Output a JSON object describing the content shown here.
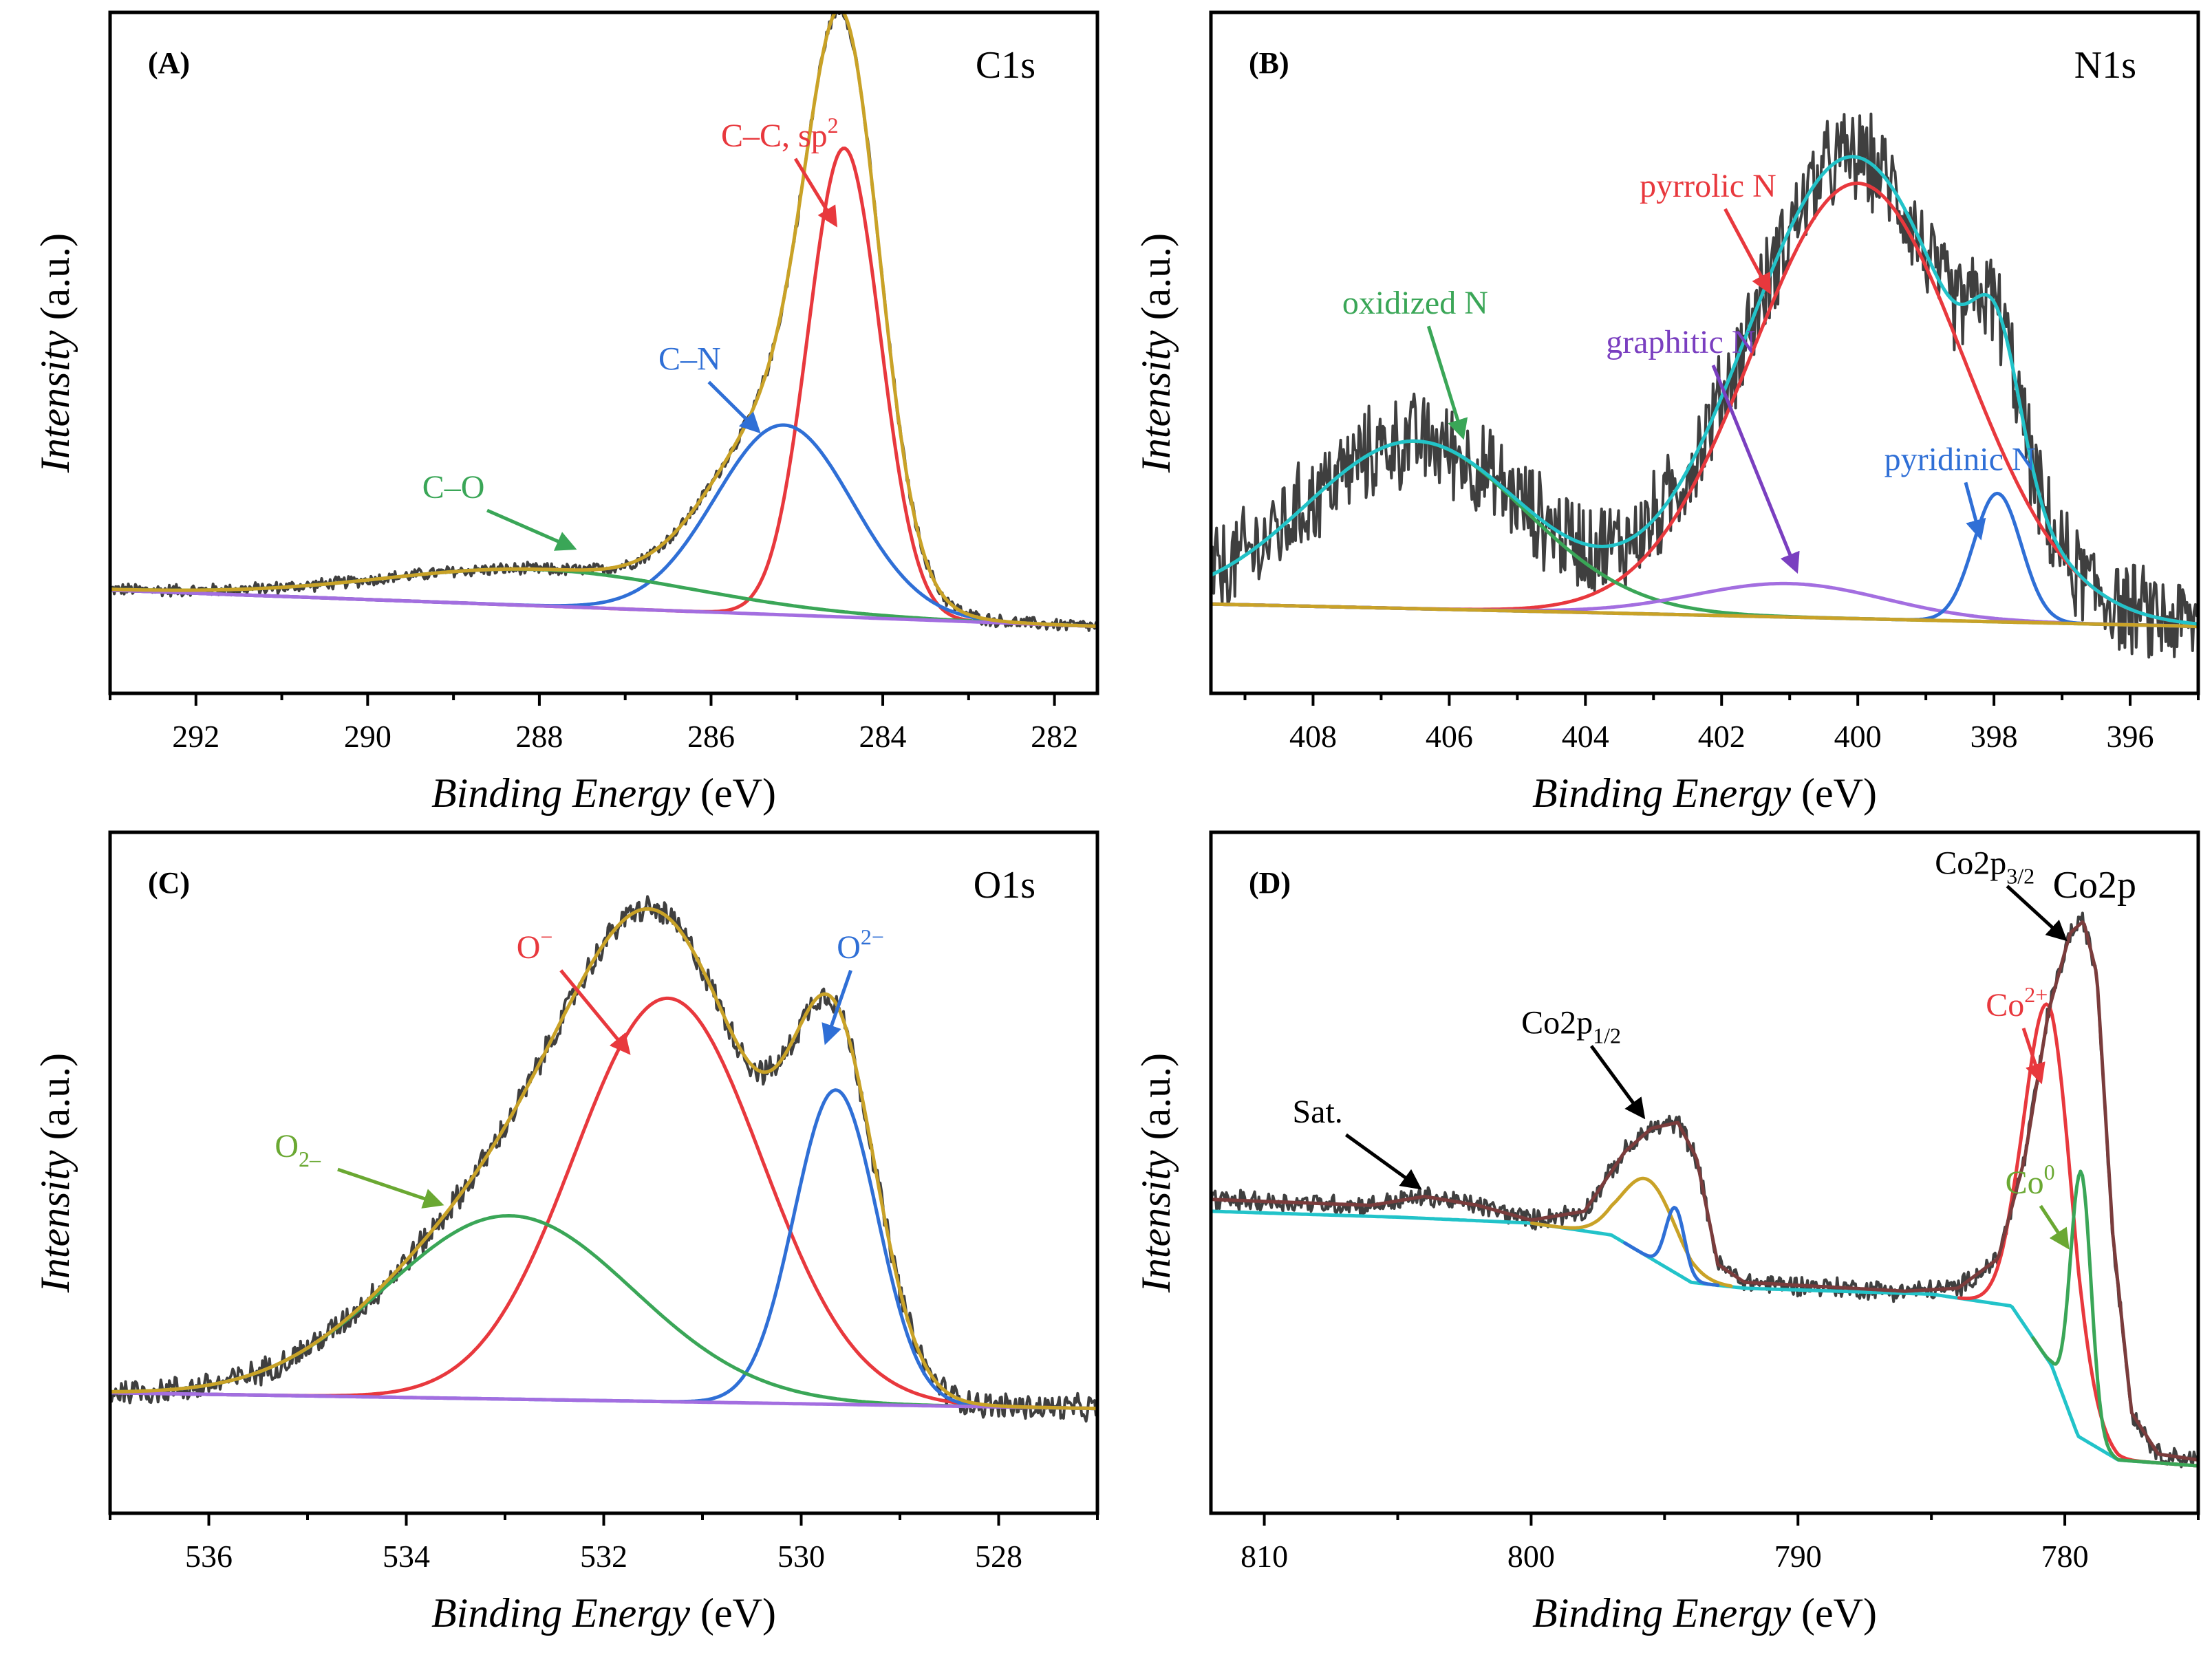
{
  "chart_data": [
    {
      "id": "A",
      "type": "line",
      "panel_label": "(A)",
      "title": "C1s",
      "xlabel_italic": "Binding Energy",
      "xlabel_unit": "(eV)",
      "ylabel_italic": "Intensity",
      "ylabel_unit": "(a.u.)",
      "xlim": [
        293,
        281.5
      ],
      "ylim": [
        -0.12,
        1.1
      ],
      "xticks": [
        292,
        290,
        288,
        286,
        284,
        282
      ],
      "xtick_labels": [
        "292",
        "290",
        "288",
        "286",
        "284",
        "282"
      ],
      "baseline": {
        "start": 0.065,
        "end": 0.0
      },
      "raw_noise": 0.008,
      "series": [
        {
          "name": "C–C, sp2",
          "color": "#e8383d",
          "kind": "gauss",
          "center": 284.45,
          "amp": 0.84,
          "sigma": 0.42
        },
        {
          "name": "C–N",
          "color": "#2f6fd6",
          "kind": "gauss",
          "center": 285.15,
          "amp": 0.34,
          "sigma": 0.8
        },
        {
          "name": "C–O",
          "color": "#3aa657",
          "kind": "gauss",
          "center": 288.0,
          "amp": 0.065,
          "sigma": 1.8
        },
        {
          "name": "Background",
          "color": "#a36ee0",
          "kind": "baseline"
        },
        {
          "name": "Envelope",
          "color": "#c9a227",
          "kind": "sum"
        }
      ],
      "annotations": [
        {
          "text": "C–C, sp",
          "sup": "2",
          "color": "#e8383d",
          "x": 285.2,
          "y": 0.86,
          "ax": 284.55,
          "ay": 0.72
        },
        {
          "text": "C–N",
          "color": "#2f6fd6",
          "x": 286.25,
          "y": 0.46,
          "ax": 285.45,
          "ay": 0.35
        },
        {
          "text": "C–O",
          "color": "#3aa657",
          "x": 289.0,
          "y": 0.23,
          "ax": 287.6,
          "ay": 0.14
        }
      ]
    },
    {
      "id": "B",
      "type": "line",
      "panel_label": "(B)",
      "title": "N1s",
      "xlabel_italic": "Binding Energy",
      "xlabel_unit": "(eV)",
      "ylabel_italic": "Intensity",
      "ylabel_unit": "(a.u.)",
      "xlim": [
        409.5,
        395
      ],
      "ylim": [
        -0.12,
        1.1
      ],
      "xticks": [
        408,
        406,
        404,
        402,
        400,
        398,
        396
      ],
      "xtick_labels": [
        "408",
        "406",
        "404",
        "402",
        "400",
        "398",
        "396"
      ],
      "baseline": {
        "start": 0.04,
        "end": 0.0
      },
      "raw_noise": 0.06,
      "series": [
        {
          "name": "pyrrolic N",
          "color": "#e8383d",
          "kind": "gauss",
          "center": 400.0,
          "amp": 0.78,
          "sigma": 1.55
        },
        {
          "name": "oxidized N",
          "color": "#3aa657",
          "kind": "gauss",
          "center": 406.5,
          "amp": 0.3,
          "sigma": 1.6
        },
        {
          "name": "graphitic N",
          "color": "#a36ee0",
          "kind": "gauss",
          "center": 401.0,
          "amp": 0.06,
          "sigma": 1.4
        },
        {
          "name": "pyridinic N",
          "color": "#2f6fd6",
          "kind": "gauss",
          "center": 397.95,
          "amp": 0.23,
          "sigma": 0.35
        },
        {
          "name": "Background",
          "color": "#c9a227",
          "kind": "baseline"
        },
        {
          "name": "Envelope",
          "color": "#22c3c9",
          "kind": "sum"
        }
      ],
      "annotations": [
        {
          "text": "pyrrolic N",
          "color": "#e8383d",
          "x": 402.2,
          "y": 0.77,
          "ax": 401.3,
          "ay": 0.6
        },
        {
          "text": "oxidized N",
          "color": "#3aa657",
          "x": 406.5,
          "y": 0.56,
          "ax": 405.8,
          "ay": 0.34
        },
        {
          "text": "graphitic N",
          "color": "#7a3fc0",
          "x": 402.6,
          "y": 0.49,
          "ax": 400.9,
          "ay": 0.1
        },
        {
          "text": "pyridinic N",
          "color": "#2f6fd6",
          "x": 398.5,
          "y": 0.28,
          "ax": 398.2,
          "ay": 0.16
        }
      ]
    },
    {
      "id": "C",
      "type": "line",
      "panel_label": "(C)",
      "title": "O1s",
      "xlabel_italic": "Binding Energy",
      "xlabel_unit": "(eV)",
      "ylabel_italic": "Intensity",
      "ylabel_unit": "(a.u.)",
      "xlim": [
        537,
        527
      ],
      "ylim": [
        -0.2,
        1.1
      ],
      "xticks": [
        536,
        534,
        532,
        530,
        528
      ],
      "xtick_labels": [
        "536",
        "534",
        "532",
        "530",
        "528"
      ],
      "baseline": {
        "start": 0.03,
        "end": 0.0
      },
      "raw_noise": 0.018,
      "series": [
        {
          "name": "O⁻",
          "color": "#e8383d",
          "kind": "gauss",
          "center": 531.35,
          "amp": 0.77,
          "sigma": 0.95
        },
        {
          "name": "O2−",
          "color": "#2f6fd6",
          "kind": "gauss",
          "center": 529.65,
          "amp": 0.6,
          "sigma": 0.42
        },
        {
          "name": "O2–",
          "color": "#3aa657",
          "kind": "gauss",
          "center": 532.95,
          "amp": 0.35,
          "sigma": 1.25
        },
        {
          "name": "Background",
          "color": "#a36ee0",
          "kind": "baseline"
        },
        {
          "name": "Envelope",
          "color": "#c9a227",
          "kind": "sum"
        }
      ],
      "annotations": [
        {
          "text": "O",
          "sup": "−",
          "color": "#e8383d",
          "x": 532.7,
          "y": 0.86,
          "ax": 531.75,
          "ay": 0.68
        },
        {
          "text": "O",
          "sup": "2−",
          "color": "#2f6fd6",
          "x": 529.4,
          "y": 0.86,
          "ax": 529.75,
          "ay": 0.7
        },
        {
          "text": "O",
          "sub": "2–",
          "color": "#6aa832",
          "x": 535.1,
          "y": 0.48,
          "ax": 533.65,
          "ay": 0.39
        }
      ]
    },
    {
      "id": "D",
      "type": "line",
      "panel_label": "(D)",
      "title": "Co2p",
      "xlabel_italic": "Binding Energy",
      "xlabel_unit": "(eV)",
      "ylabel_italic": "Intensity",
      "ylabel_unit": "(a.u.)",
      "xlim": [
        812,
        775
      ],
      "ylim": [
        -0.05,
        1.1
      ],
      "xticks": [
        810,
        800,
        790,
        780
      ],
      "xtick_labels": [
        "810",
        "800",
        "790",
        "780"
      ],
      "raw_noise": 0.012,
      "background_points": [
        [
          812,
          0.46
        ],
        [
          805,
          0.45
        ],
        [
          800,
          0.44
        ],
        [
          797,
          0.42
        ],
        [
          794,
          0.34
        ],
        [
          792,
          0.33
        ],
        [
          785,
          0.32
        ],
        [
          782,
          0.3
        ],
        [
          780.5,
          0.2
        ],
        [
          779.5,
          0.08
        ],
        [
          778,
          0.04
        ],
        [
          775,
          0.03
        ]
      ],
      "series": [
        {
          "name": "Background",
          "color": "#22c3c9",
          "kind": "background"
        },
        {
          "name": "Co2p1/2",
          "color": "#c9a227",
          "kind": "gauss_bg",
          "center": 795.6,
          "amp": 0.13,
          "sigma": 1.0,
          "range": [
            800,
            792.5
          ]
        },
        {
          "name": "Co2p1/2 Co0",
          "color": "#2f6fd6",
          "kind": "gauss_bg",
          "center": 794.6,
          "amp": 0.11,
          "sigma": 0.35,
          "range": [
            796.5,
            793
          ]
        },
        {
          "name": "Co2+",
          "color": "#e8383d",
          "kind": "gauss_bg",
          "center": 780.6,
          "amp": 0.6,
          "sigma": 0.9,
          "range": [
            784,
            775
          ]
        },
        {
          "name": "Co0",
          "color": "#3aa657",
          "kind": "gauss_bg",
          "center": 779.4,
          "amp": 0.45,
          "sigma": 0.38,
          "range": [
            781.2,
            775
          ]
        },
        {
          "name": "Envelope",
          "color": "#7a3c3c",
          "kind": "envelope_points",
          "points": [
            [
              812,
              0.48
            ],
            [
              806,
              0.47
            ],
            [
              804,
              0.485
            ],
            [
              802,
              0.47
            ],
            [
              800,
              0.445
            ],
            [
              798,
              0.46
            ],
            [
              796.5,
              0.56
            ],
            [
              795.5,
              0.6
            ],
            [
              794.5,
              0.61
            ],
            [
              793.8,
              0.55
            ],
            [
              793,
              0.37
            ],
            [
              792,
              0.34
            ],
            [
              786,
              0.325
            ],
            [
              784,
              0.33
            ],
            [
              782.5,
              0.38
            ],
            [
              781.5,
              0.55
            ],
            [
              780.6,
              0.8
            ],
            [
              779.8,
              0.93
            ],
            [
              779.3,
              0.95
            ],
            [
              778.8,
              0.86
            ],
            [
              778.2,
              0.42
            ],
            [
              777.5,
              0.12
            ],
            [
              776.5,
              0.05
            ],
            [
              775,
              0.04
            ]
          ]
        }
      ],
      "annotations": [
        {
          "text": "Co2p",
          "sub": "3/2",
          "color": "#000000",
          "x": 783.0,
          "y": 1.03,
          "ax": 780.0,
          "ay": 0.92
        },
        {
          "text": "Co",
          "sup": "2+",
          "color": "#e8383d",
          "x": 781.8,
          "y": 0.79,
          "ax": 780.9,
          "ay": 0.68
        },
        {
          "text": "Co2p",
          "sub": "1/2",
          "color": "#000000",
          "x": 798.5,
          "y": 0.76,
          "ax": 795.8,
          "ay": 0.62
        },
        {
          "text": "Sat.",
          "color": "#000000",
          "x": 808.0,
          "y": 0.61,
          "ax": 804.2,
          "ay": 0.5
        },
        {
          "text": "Co",
          "sup": "0",
          "color": "#6aa832",
          "x": 781.3,
          "y": 0.49,
          "ax": 779.9,
          "ay": 0.4
        }
      ]
    }
  ]
}
